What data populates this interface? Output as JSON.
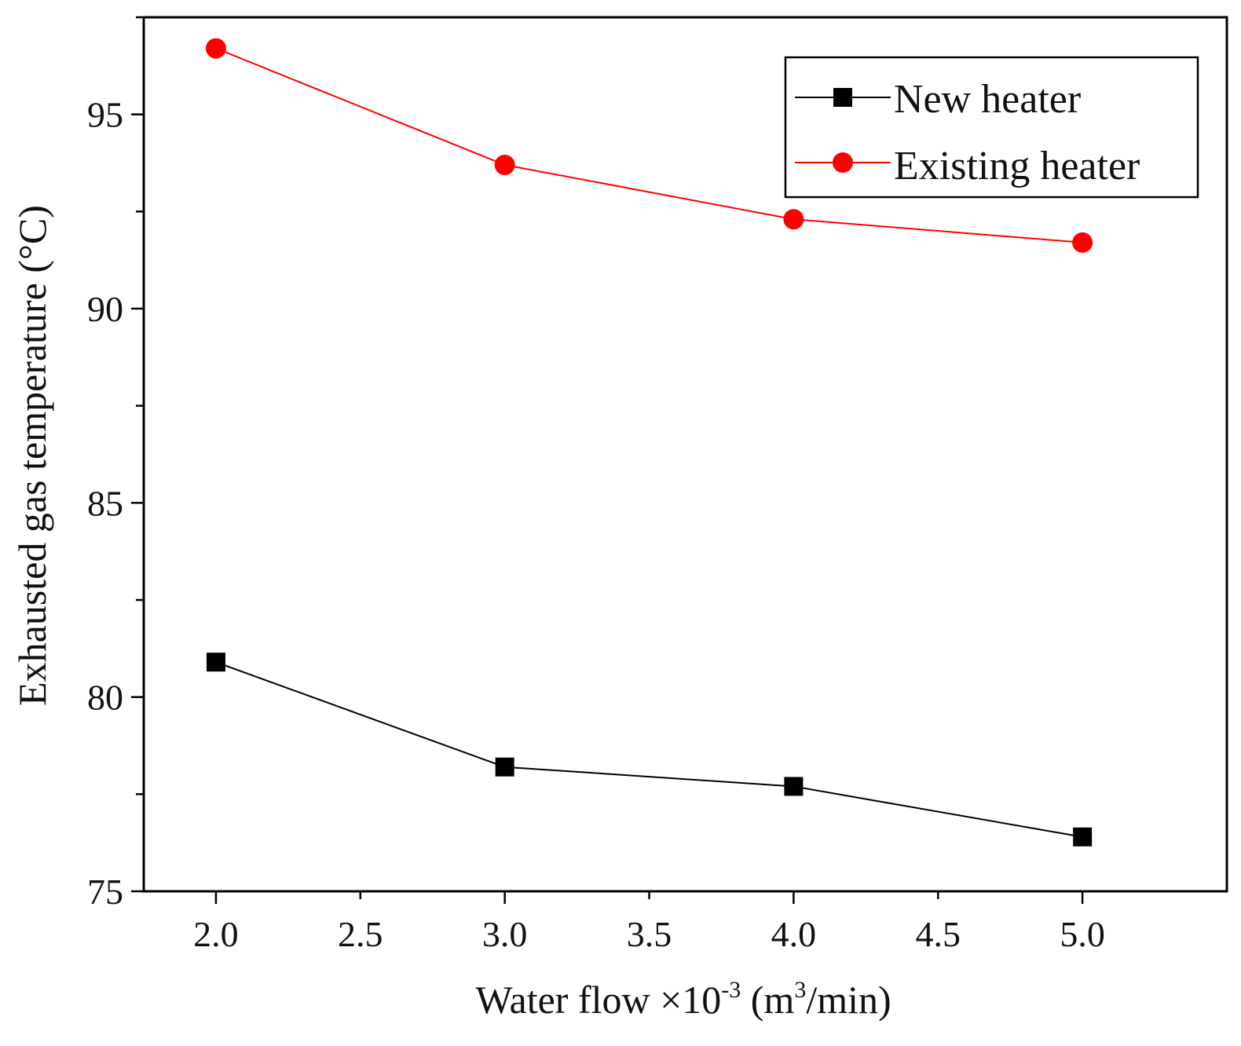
{
  "chart_data": {
    "type": "line",
    "title": "",
    "xlabel": {
      "main": "Water flow ×10",
      "exp": "-3",
      "unit_open": " (m",
      "unit_exp": "3",
      "unit_close": "/min)"
    },
    "ylabel": "Exhausted gas temperature (°C)",
    "xlim": [
      1.75,
      5.5
    ],
    "ylim": [
      75,
      97.5
    ],
    "x_ticks": [
      2.0,
      2.5,
      3.0,
      3.5,
      4.0,
      4.5,
      5.0
    ],
    "x_tick_labels": [
      "2.0",
      "2.5",
      "3.0",
      "3.5",
      "4.0",
      "4.5",
      "5.0"
    ],
    "y_ticks": [
      75,
      80,
      85,
      90,
      95
    ],
    "y_tick_labels": [
      "75",
      "80",
      "85",
      "90",
      "95"
    ],
    "grid": false,
    "legend_position": "top-right",
    "series": [
      {
        "name": "New heater",
        "color": "#000000",
        "marker": "square",
        "x": [
          2.0,
          3.0,
          4.0,
          5.0
        ],
        "values": [
          80.9,
          78.2,
          77.7,
          76.4
        ]
      },
      {
        "name": "Existing heater",
        "color": "#ff0000",
        "marker": "circle",
        "x": [
          2.0,
          3.0,
          4.0,
          5.0
        ],
        "values": [
          96.7,
          93.7,
          92.3,
          91.7
        ]
      }
    ]
  }
}
